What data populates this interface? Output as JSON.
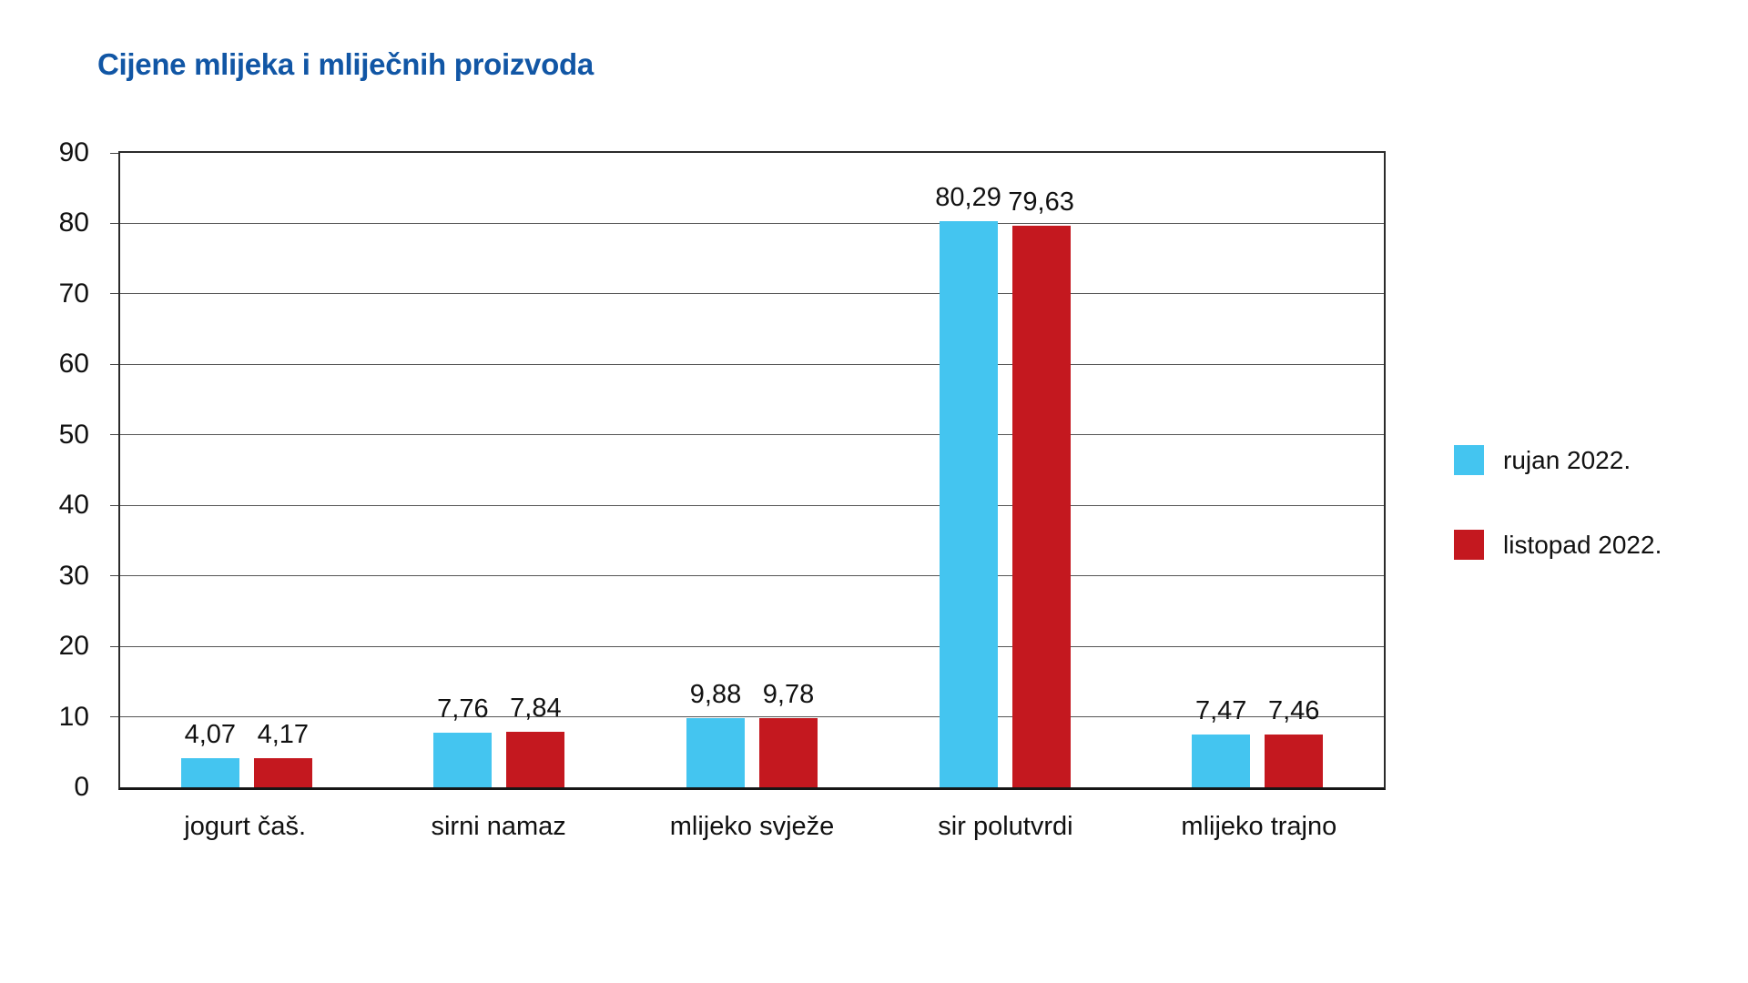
{
  "title": "Cijene mlijeka i mliječnih proizvoda",
  "title_color": "#1156a5",
  "chart_data": {
    "type": "bar",
    "title": "Cijene mlijeka i mliječnih proizvoda",
    "categories": [
      "jogurt čaš.",
      "sirni namaz",
      "mlijeko svježe",
      "sir polutvrdi",
      "mlijeko trajno"
    ],
    "series": [
      {
        "name": "rujan 2022.",
        "color": "#44c5f0",
        "values": [
          4.07,
          7.76,
          9.88,
          80.29,
          7.47
        ],
        "value_labels": [
          "4,07",
          "7,76",
          "9,88",
          "80,29",
          "7,47"
        ]
      },
      {
        "name": "listopad 2022.",
        "color": "#c4181f",
        "values": [
          4.17,
          7.84,
          9.78,
          79.63,
          7.46
        ],
        "value_labels": [
          "4,17",
          "7,84",
          "9,78",
          "79,63",
          "7,46"
        ]
      }
    ],
    "xlabel": "",
    "ylabel": "",
    "ylim": [
      0,
      90
    ],
    "yticks": [
      0,
      10,
      20,
      30,
      40,
      50,
      60,
      70,
      80,
      90
    ],
    "grid": true,
    "legend_position": "right"
  }
}
